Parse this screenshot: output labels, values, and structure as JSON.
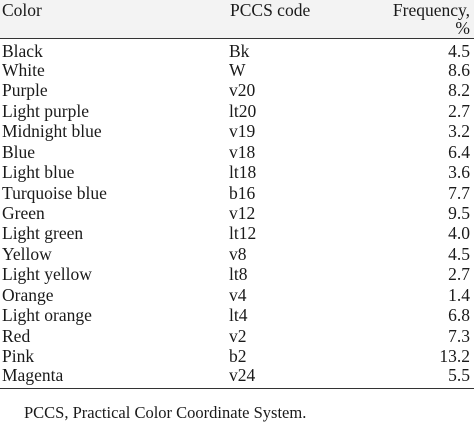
{
  "table": {
    "headers": [
      "Color",
      "PCCS code",
      "Frequency, %"
    ],
    "rows": [
      {
        "color": "Black",
        "code": "Bk",
        "frequency": "4.5"
      },
      {
        "color": "White",
        "code": "W",
        "frequency": "8.6"
      },
      {
        "color": "Purple",
        "code": "v20",
        "frequency": "8.2"
      },
      {
        "color": "Light purple",
        "code": "lt20",
        "frequency": "2.7"
      },
      {
        "color": "Midnight blue",
        "code": "v19",
        "frequency": "3.2"
      },
      {
        "color": "Blue",
        "code": "v18",
        "frequency": "6.4"
      },
      {
        "color": "Light blue",
        "code": "lt18",
        "frequency": "3.6"
      },
      {
        "color": "Turquoise blue",
        "code": "b16",
        "frequency": "7.7"
      },
      {
        "color": "Green",
        "code": "v12",
        "frequency": "9.5"
      },
      {
        "color": "Light green",
        "code": "lt12",
        "frequency": "4.0"
      },
      {
        "color": "Yellow",
        "code": "v8",
        "frequency": "4.5"
      },
      {
        "color": "Light yellow",
        "code": "lt8",
        "frequency": "2.7"
      },
      {
        "color": "Orange",
        "code": "v4",
        "frequency": "1.4"
      },
      {
        "color": "Light orange",
        "code": "lt4",
        "frequency": "6.8"
      },
      {
        "color": "Red",
        "code": "v2",
        "frequency": "7.3"
      },
      {
        "color": "Pink",
        "code": "b2",
        "frequency": "13.2"
      },
      {
        "color": "Magenta",
        "code": "v24",
        "frequency": "5.5"
      }
    ]
  },
  "footnote": "PCCS, Practical Color Coordinate System."
}
